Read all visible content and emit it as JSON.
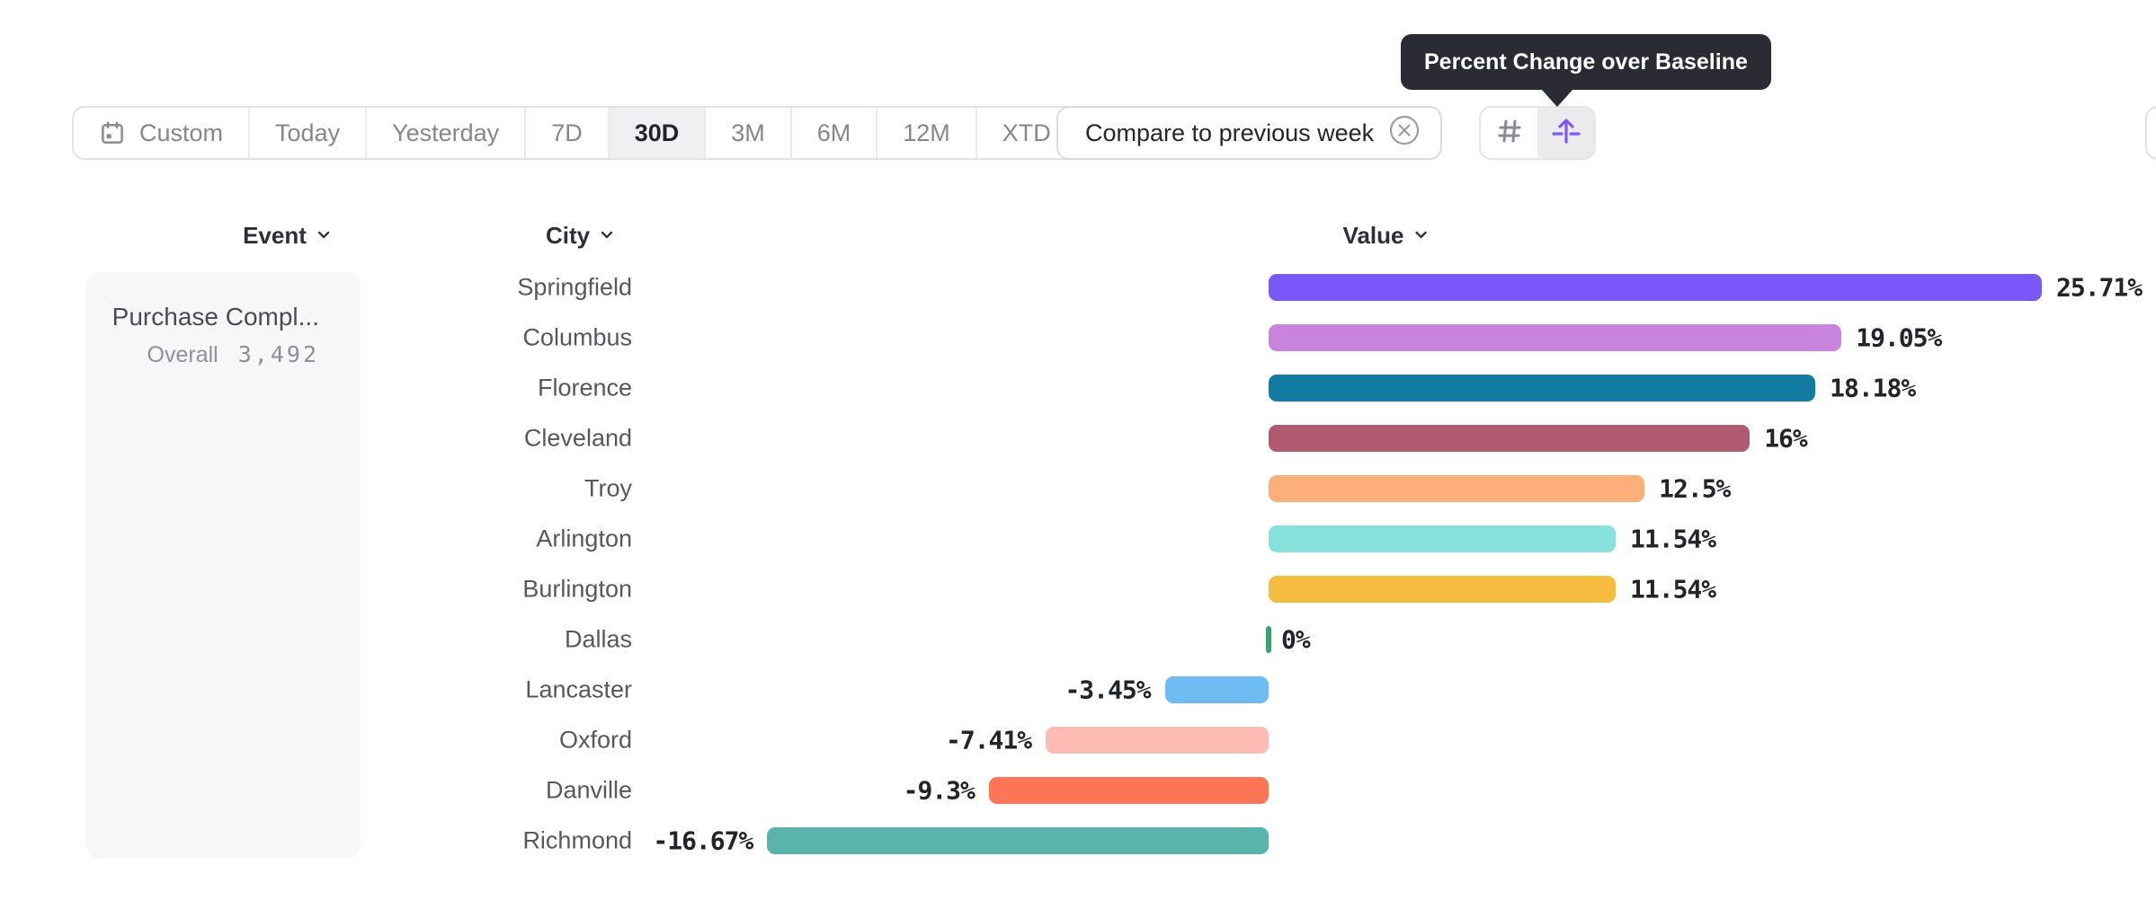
{
  "tooltip": {
    "text": "Percent Change over Baseline"
  },
  "toolbar": {
    "items": [
      {
        "label": "Custom"
      },
      {
        "label": "Today"
      },
      {
        "label": "Yesterday"
      },
      {
        "label": "7D"
      },
      {
        "label": "30D"
      },
      {
        "label": "3M"
      },
      {
        "label": "6M"
      },
      {
        "label": "12M"
      },
      {
        "label": "XTD"
      }
    ],
    "selected": "30D"
  },
  "compare": {
    "label": "Compare to previous week"
  },
  "columns": {
    "event": "Event",
    "city": "City",
    "value": "Value"
  },
  "event_panel": {
    "name": "Purchase Compl...",
    "overall_label": "Overall",
    "overall_value": "3,492"
  },
  "view_toggle": {
    "active_view": "percent-change-over-baseline",
    "active_color": "#7b5bf7"
  },
  "chart_data": {
    "type": "bar",
    "orientation": "horizontal",
    "grid": false,
    "title": "Percent Change over Baseline",
    "unit": "%",
    "xlim": [
      -16.67,
      25.71
    ],
    "categories": [
      "Springfield",
      "Columbus",
      "Florence",
      "Cleveland",
      "Troy",
      "Arlington",
      "Burlington",
      "Dallas",
      "Lancaster",
      "Oxford",
      "Danville",
      "Richmond"
    ],
    "values": [
      25.71,
      19.05,
      18.18,
      16,
      12.5,
      11.54,
      11.54,
      0,
      -3.45,
      -7.41,
      -9.3,
      -16.67
    ],
    "value_labels": [
      "25.71%",
      "19.05%",
      "18.18%",
      "16%",
      "12.5%",
      "11.54%",
      "11.54%",
      "0%",
      "-3.45%",
      "-7.41%",
      "-9.3%",
      "-16.67%"
    ],
    "colors": [
      "#7957f8",
      "#c884dd",
      "#127ba1",
      "#b05970",
      "#fdaf79",
      "#86e2da",
      "#f6bc3f",
      "#35a56d",
      "#6fbbf4",
      "#fcbcb4",
      "#fd7557",
      "#59b5ab"
    ]
  }
}
